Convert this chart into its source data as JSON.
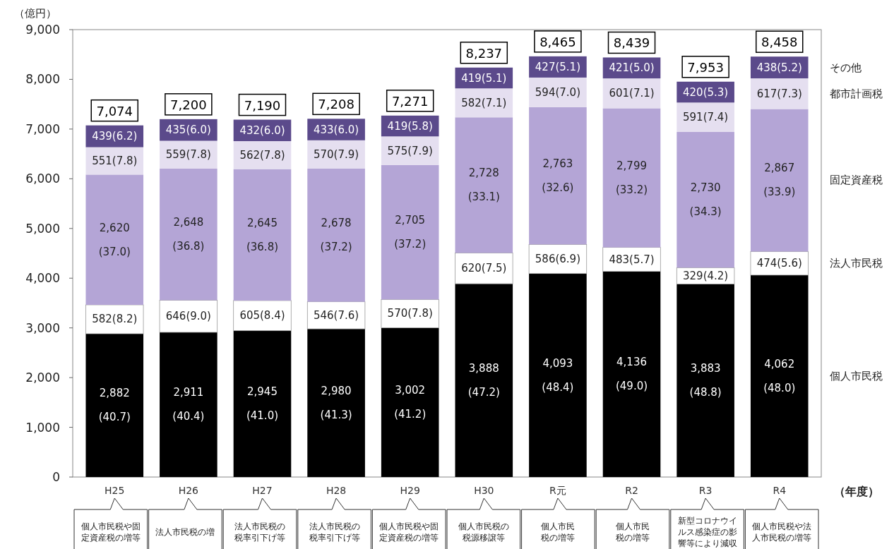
{
  "chart_data": {
    "type": "bar",
    "stacked": true,
    "ylabel": "（億円）",
    "xlabel": "（年度）",
    "categories": [
      "H25",
      "H26",
      "H27",
      "H28",
      "H29",
      "H30",
      "R元",
      "R2",
      "R3",
      "R4"
    ],
    "series": [
      {
        "name": "個人市民税",
        "color": "#000000",
        "values": [
          2882,
          2911,
          2945,
          2980,
          3002,
          3888,
          4093,
          4136,
          3883,
          4062
        ],
        "value_labels": [
          "2,882\n(40.7)",
          "2,911\n(40.4)",
          "2,945\n(41.0)",
          "2,980\n(41.3)",
          "3,002\n(41.2)",
          "3,888\n(47.2)",
          "4,093\n(48.4)",
          "4,136\n(49.0)",
          "3,883\n(48.8)",
          "4,062\n(48.0)"
        ]
      },
      {
        "name": "法人市民税",
        "color": "#ffffff",
        "values": [
          582,
          646,
          605,
          546,
          570,
          620,
          586,
          483,
          329,
          474
        ],
        "value_labels": [
          "582(8.2)",
          "646(9.0)",
          "605(8.4)",
          "546(7.6)",
          "570(7.8)",
          "620(7.5)",
          "586(6.9)",
          "483(5.7)",
          "329(4.2)",
          "474(5.6)"
        ]
      },
      {
        "name": "固定資産税",
        "color": "#b4a5d6",
        "values": [
          2620,
          2648,
          2645,
          2678,
          2705,
          2728,
          2763,
          2799,
          2730,
          2867
        ],
        "value_labels": [
          "2,620\n(37.0)",
          "2,648\n(36.8)",
          "2,645\n(36.8)",
          "2,678\n(37.2)",
          "2,705\n(37.2)",
          "2,728\n(33.1)",
          "2,763\n(32.6)",
          "2,799\n(33.2)",
          "2,730\n(34.3)",
          "2,867\n(33.9)"
        ]
      },
      {
        "name": "都市計画税",
        "color": "#e5dff0",
        "values": [
          551,
          559,
          562,
          570,
          575,
          582,
          594,
          601,
          591,
          617
        ],
        "value_labels": [
          "551(7.8)",
          "559(7.8)",
          "562(7.8)",
          "570(7.9)",
          "575(7.9)",
          "582(7.1)",
          "594(7.0)",
          "601(7.1)",
          "591(7.4)",
          "617(7.3)"
        ]
      },
      {
        "name": "その他",
        "color": "#5b4a8b",
        "values": [
          439,
          435,
          432,
          433,
          419,
          419,
          427,
          421,
          420,
          438
        ],
        "value_labels": [
          "439(6.2)",
          "435(6.0)",
          "432(6.0)",
          "433(6.0)",
          "419(5.8)",
          "419(5.1)",
          "427(5.1)",
          "421(5.0)",
          "420(5.3)",
          "438(5.2)"
        ]
      }
    ],
    "totals": [
      "7,074",
      "7,200",
      "7,190",
      "7,208",
      "7,271",
      "8,237",
      "8,465",
      "8,439",
      "7,953",
      "8,458"
    ],
    "ylim": [
      0,
      9000
    ],
    "yticks": [
      0,
      {
        "value": 1000,
        "label": "1,000"
      },
      {
        "value": 2000,
        "label": "2,000"
      },
      {
        "value": 3000,
        "label": "3,000"
      },
      {
        "value": 4000,
        "label": "4,000"
      },
      {
        "value": 5000,
        "label": "5,000"
      },
      {
        "value": 6000,
        "label": "6,000"
      },
      {
        "value": 7000,
        "label": "7,000"
      },
      {
        "value": 8000,
        "label": "8,000"
      },
      {
        "value": 9000,
        "label": "9,000"
      }
    ],
    "annotations": [
      "個人市民税や固定資産税の増等",
      "法人市民税の増",
      "法人市民税の税率引下げ等",
      "法人市民税の税率引下げ等",
      "個人市民税や固定資産税の増等",
      "個人市民税の税源移譲等",
      "個人市民税の増等",
      "個人市民税の増等",
      "新型コロナウイルス感染症の影響等により減収",
      "個人市民税や法人市民税の増等"
    ]
  }
}
